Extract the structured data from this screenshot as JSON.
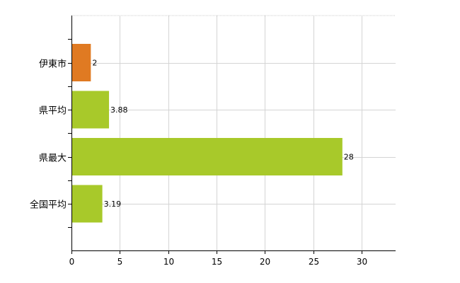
{
  "chart_data": {
    "type": "bar",
    "orientation": "horizontal",
    "categories": [
      "伊東市",
      "県平均",
      "県最大",
      "全国平均"
    ],
    "values": [
      2,
      3.88,
      28,
      3.19
    ],
    "data_labels": [
      "2",
      "3.88",
      "28",
      "3.19"
    ],
    "bar_colors": [
      "#e07a22",
      "#a8c92a",
      "#a8c92a",
      "#a8c92a"
    ],
    "x_ticks": [
      "0",
      "5",
      "10",
      "15",
      "20",
      "25",
      "30"
    ],
    "xlim": [
      0,
      33.5
    ],
    "grid": true,
    "legend": "none"
  }
}
